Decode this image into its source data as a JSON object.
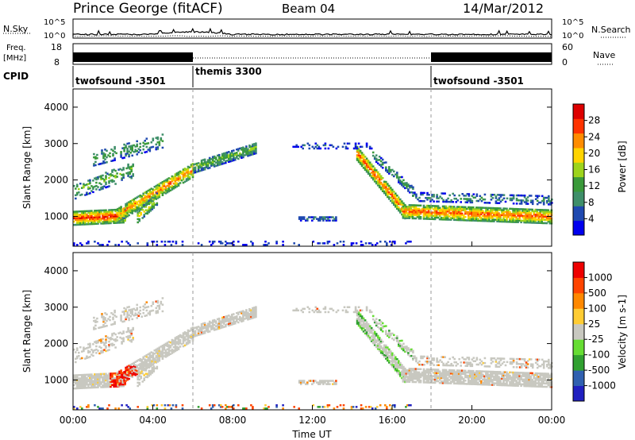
{
  "header": {
    "station": "Prince George (fitACF)",
    "beam": "Beam 04",
    "date": "14/Mar/2012"
  },
  "noise_panel": {
    "left_label": "N.Sky",
    "right_label": "N.Search",
    "left_ticks": [
      "10^5",
      "10^0"
    ],
    "right_ticks": [
      "10^5",
      "10^0"
    ]
  },
  "freq_panel": {
    "left_label_1": "Freq.",
    "left_label_2": "[MHz]",
    "right_label": "Nave",
    "left_ticks": [
      "18",
      "8"
    ],
    "right_ticks": [
      "60",
      "0"
    ]
  },
  "cpid": {
    "label": "CPID",
    "segments": [
      {
        "name": "twofsound -3501",
        "start_h": 0,
        "end_h": 6
      },
      {
        "name": "themis 3300",
        "start_h": 6,
        "end_h": 18
      },
      {
        "name": "twofsound -3501",
        "start_h": 18,
        "end_h": 24
      }
    ]
  },
  "colors": {
    "power": [
      "#0000ee",
      "#1f49b0",
      "#3f8f6a",
      "#3a9a3a",
      "#9dd41c",
      "#ffd400",
      "#ff8c00",
      "#ff3300",
      "#dd0000"
    ],
    "velocity": [
      "#2020c0",
      "#3060b0",
      "#30a030",
      "#66dd33",
      "#c8c8c0",
      "#ffcc33",
      "#ff8800",
      "#ff4400",
      "#ee0000"
    ]
  },
  "chart_data": [
    {
      "type": "heatmap",
      "title": "Power",
      "ylabel": "Slant Range [km]",
      "ylim": [
        180,
        4500
      ],
      "yticks": [
        1000,
        2000,
        3000,
        4000
      ],
      "xlim": [
        0,
        24
      ],
      "colorbar_label": "Power [dB]",
      "colorbar_ticks": [
        "28",
        "24",
        "20",
        "16",
        "12",
        "8",
        "4"
      ],
      "colorbar_range": [
        0,
        32
      ],
      "features": [
        {
          "t0": 0.0,
          "t1": 2.5,
          "r0": 950,
          "r1": 1000,
          "level": 26
        },
        {
          "t0": 2.5,
          "t1": 6.0,
          "r0": 1000,
          "r1": 2350,
          "level": 20
        },
        {
          "t0": 6.0,
          "t1": 9.0,
          "r0": 2350,
          "r1": 2850,
          "level": 14
        },
        {
          "t0": 14.2,
          "t1": 16.5,
          "r0": 2700,
          "r1": 1100,
          "level": 22
        },
        {
          "t0": 16.5,
          "t1": 24.0,
          "r0": 1100,
          "r1": 1000,
          "level": 26
        }
      ]
    },
    {
      "type": "heatmap",
      "title": "Velocity",
      "ylabel": "Slant Range [km]",
      "xlabel": "Time UT",
      "ylim": [
        180,
        4500
      ],
      "yticks": [
        1000,
        2000,
        3000,
        4000
      ],
      "xlim": [
        0,
        24
      ],
      "xticks": [
        "00:00",
        "04:00",
        "08:00",
        "12:00",
        "16:00",
        "20:00",
        "00:00"
      ],
      "colorbar_label": "Velocity [m s-1]",
      "colorbar_ticks": [
        "1000",
        "500",
        "100",
        "25",
        "-25",
        "-100",
        "-500",
        "-1000"
      ]
    }
  ]
}
